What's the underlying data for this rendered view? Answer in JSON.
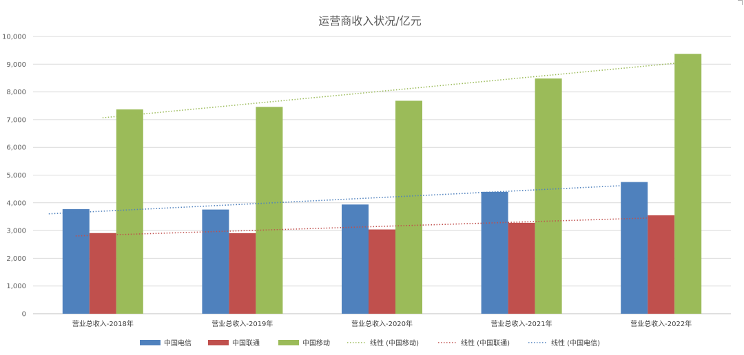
{
  "chart_data": {
    "type": "bar",
    "title": "运营商收入状况/亿元",
    "categories": [
      "营业总收入-2018年",
      "营业总收入-2019年",
      "营业总收入-2020年",
      "营业总收入-2021年",
      "营业总收入-2022年"
    ],
    "series": [
      {
        "name": "中国电信",
        "color": "#4f81bd",
        "values": [
          3771,
          3757,
          3939,
          4396,
          4750
        ]
      },
      {
        "name": "中国联通",
        "color": "#c0504d",
        "values": [
          2909,
          2905,
          3039,
          3279,
          3549
        ]
      },
      {
        "name": "中国移动",
        "color": "#9bbb59",
        "values": [
          7368,
          7459,
          7681,
          8483,
          9373
        ]
      }
    ],
    "trendlines": [
      {
        "name": "线性 (中国移动)",
        "series": "中国移动",
        "color": "#9bbb59"
      },
      {
        "name": "线性 (中国联通)",
        "series": "中国联通",
        "color": "#c0504d"
      },
      {
        "name": "线性 (中国电信)",
        "series": "中国电信",
        "color": "#4f81bd"
      }
    ],
    "ylim": [
      0,
      10000
    ],
    "yticks": [
      "0",
      "1,000",
      "2,000",
      "3,000",
      "4,000",
      "5,000",
      "6,000",
      "7,000",
      "8,000",
      "9,000",
      "10,000"
    ],
    "grid": true,
    "legend_position": "bottom"
  }
}
